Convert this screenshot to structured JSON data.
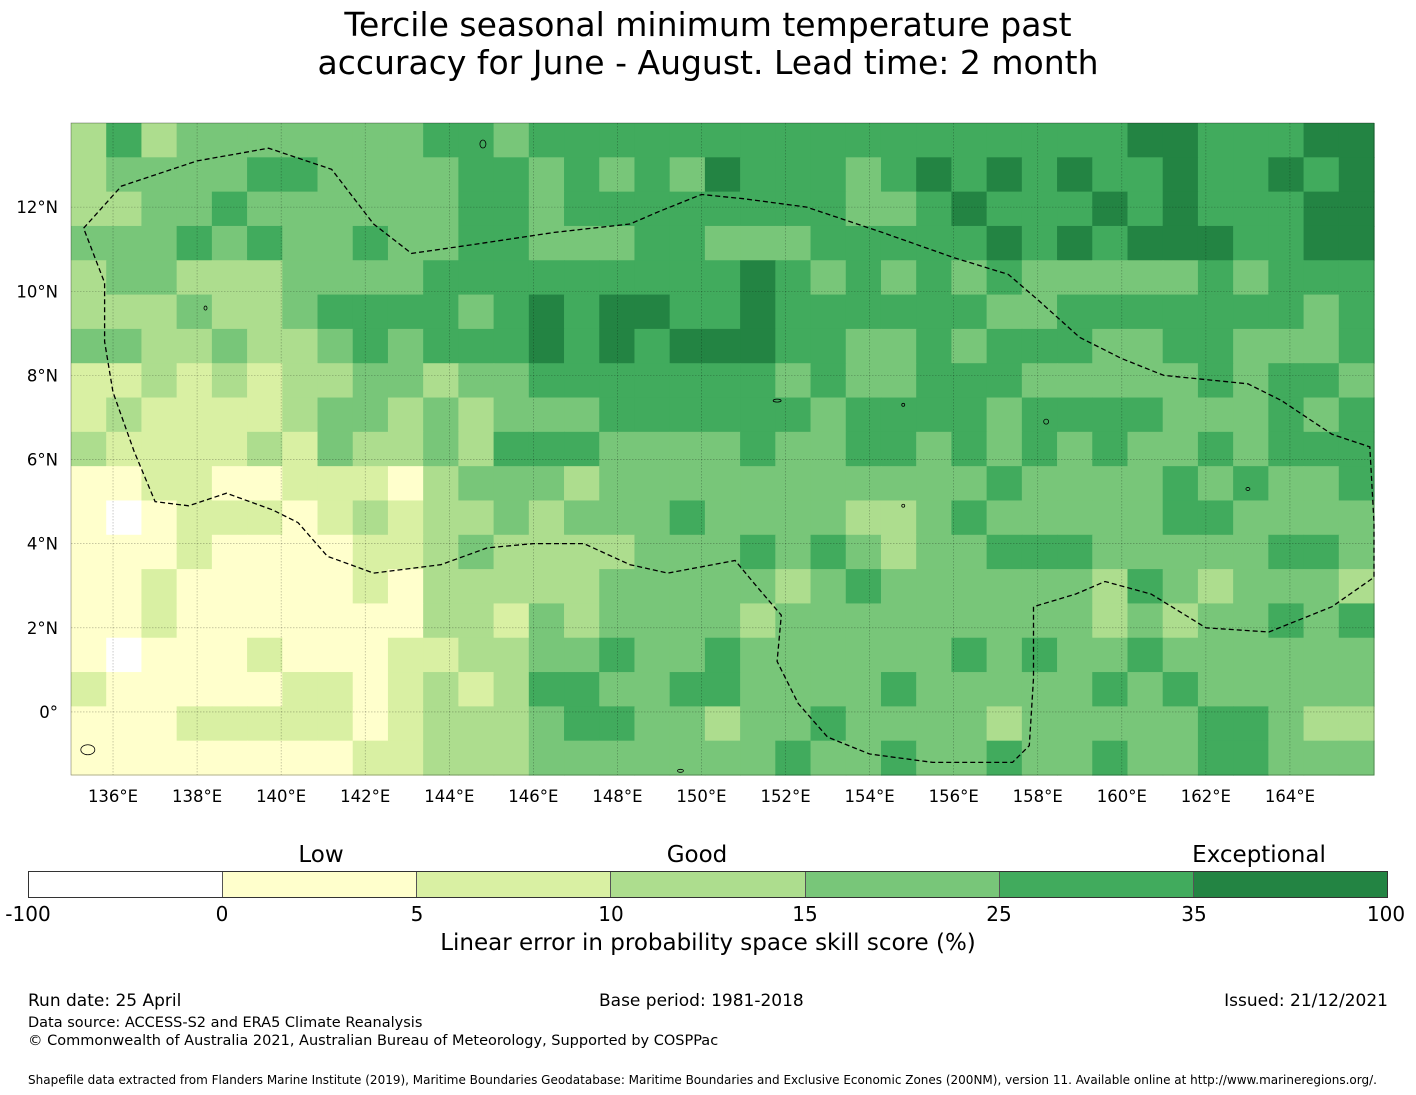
{
  "title": {
    "line1": "Tercile seasonal minimum temperature past",
    "line2": "accuracy for June - August. Lead time: 2 month"
  },
  "map": {
    "lon_range": [
      135,
      166
    ],
    "lat_range": [
      -1.5,
      14
    ],
    "x_ticks": [
      "136°E",
      "138°E",
      "140°E",
      "142°E",
      "144°E",
      "146°E",
      "148°E",
      "150°E",
      "152°E",
      "154°E",
      "156°E",
      "158°E",
      "160°E",
      "162°E",
      "164°E"
    ],
    "x_tick_values": [
      136,
      138,
      140,
      142,
      144,
      146,
      148,
      150,
      152,
      154,
      156,
      158,
      160,
      162,
      164
    ],
    "y_ticks": [
      "12°N",
      "10°N",
      "8°N",
      "6°N",
      "4°N",
      "2°N",
      "0°"
    ],
    "y_tick_values": [
      12,
      10,
      8,
      6,
      4,
      2,
      0
    ],
    "boundary_style": "dashed black line (EEZ)",
    "grid": true
  },
  "colorbar": {
    "categories": [
      {
        "word": "Low"
      },
      {
        "word": "Good"
      },
      {
        "word": "Exceptional"
      }
    ],
    "boundaries": [
      "-100",
      "0",
      "5",
      "10",
      "15",
      "25",
      "35",
      "100"
    ],
    "colors": [
      "#ffffff",
      "#ffffcc",
      "#d9f0a3",
      "#addd8e",
      "#78c679",
      "#41ab5d",
      "#238443"
    ],
    "label": "Linear error in probability space skill score (%)"
  },
  "footer": {
    "run_date": "Run date: 25 April",
    "base_period": "Base period: 1981-2018",
    "issued": "Issued: 21/12/2021",
    "data_source": "Data source: ACCESS-S2 and ERA5 Climate Reanalysis",
    "copyright": "© Commonwealth of Australia 2021, Australian Bureau of Meteorology, Supported by COSPPac",
    "shapefile": "Shapefile data extracted from Flanders Marine Institute (2019), Maritime Boundaries Geodatabase: Maritime Boundaries and Exclusive Economic Zones (200NM), version 11. Available online at http://www.marineregions.org/."
  }
}
